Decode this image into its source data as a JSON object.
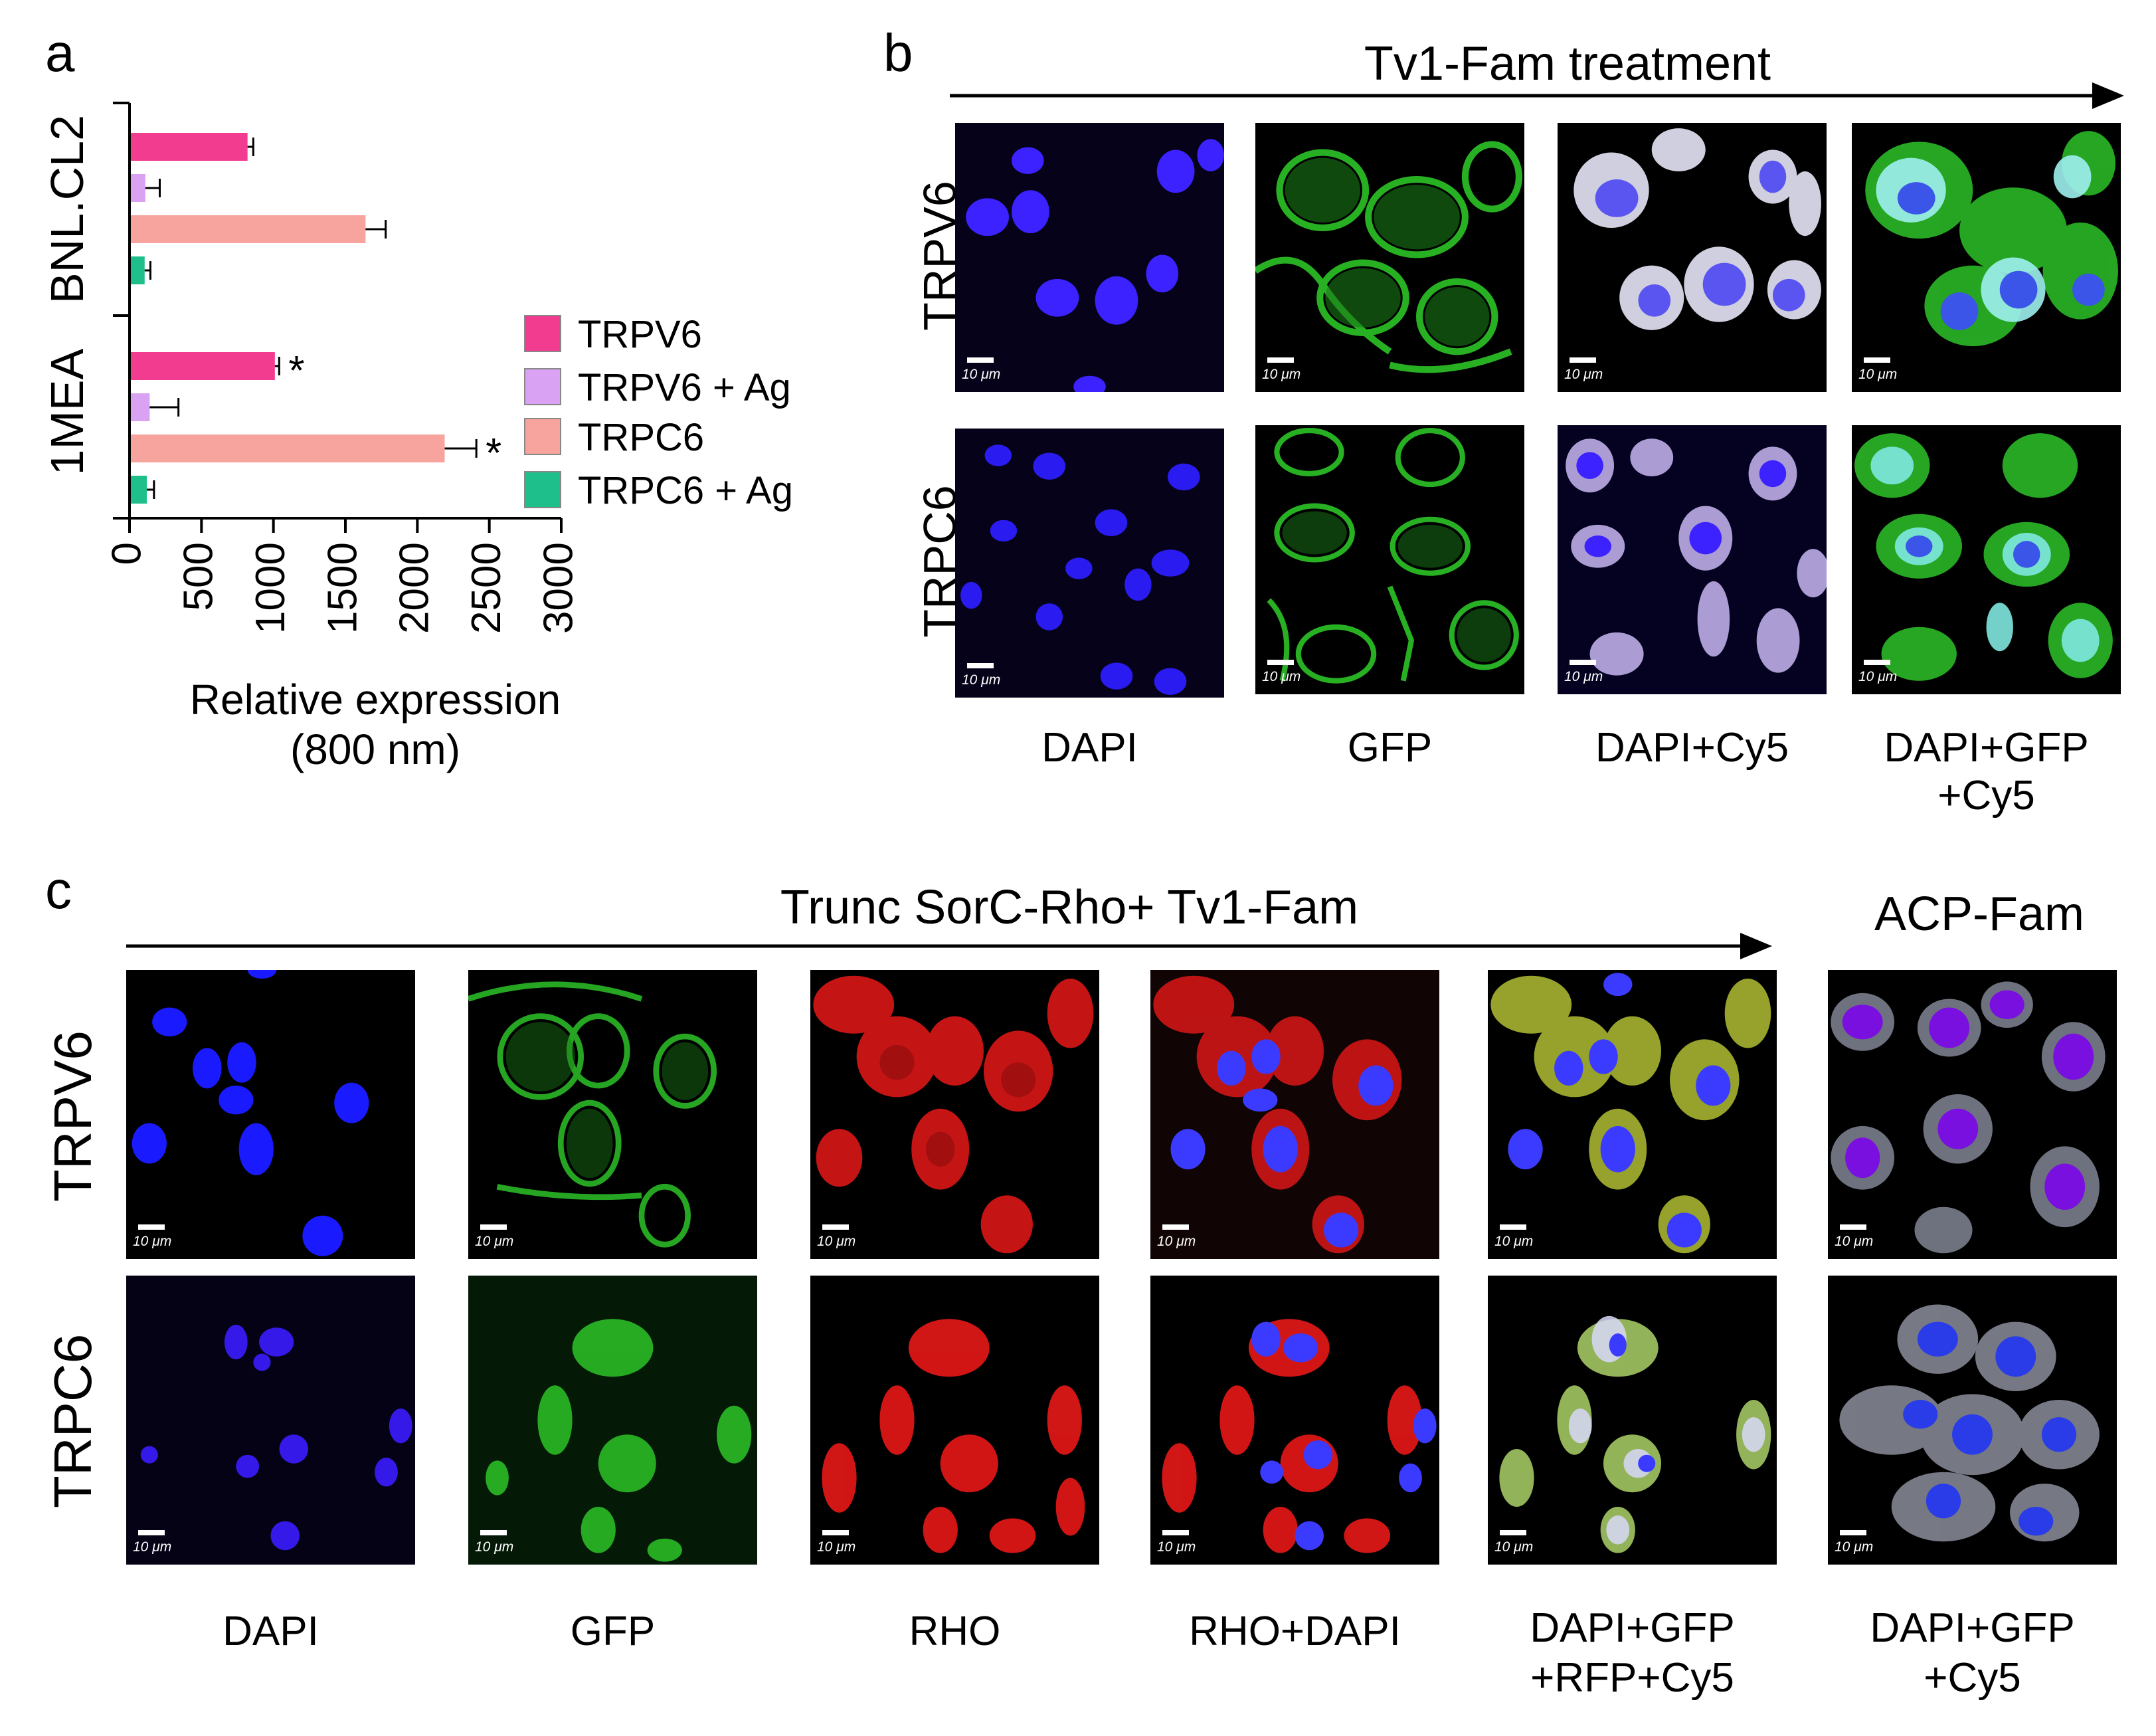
{
  "panel_a": {
    "letter": "a",
    "chart_data": {
      "type": "bar",
      "orientation": "horizontal",
      "groups": [
        "BNL.CL2",
        "1MEA"
      ],
      "series": [
        {
          "name": "TRPV6",
          "color": "#f23c90",
          "values": [
            820,
            1010
          ],
          "errors": [
            40,
            30
          ]
        },
        {
          "name": "TRPV6 + Ag",
          "color": "#d9a2f2",
          "values": [
            110,
            140
          ],
          "errors": [
            100,
            200
          ]
        },
        {
          "name": "TRPC6",
          "color": "#f7a39e",
          "values": [
            1640,
            2190
          ],
          "errors": [
            140,
            220
          ]
        },
        {
          "name": "TRPC6 + Ag",
          "color": "#1fbf8c",
          "values": [
            105,
            120
          ],
          "errors": [
            40,
            50
          ]
        }
      ],
      "significance": [
        {
          "group": "1MEA",
          "series": "TRPV6",
          "mark": "*"
        },
        {
          "group": "1MEA",
          "series": "TRPC6",
          "mark": "*"
        }
      ],
      "xlim": [
        0,
        3000
      ],
      "xticks": [
        "0",
        "500",
        "1000",
        "1500",
        "2000",
        "2500",
        "3000"
      ],
      "xlabel_line1": "Relative expression",
      "xlabel_line2": "(800 nm)",
      "legend": "right"
    }
  },
  "panel_b": {
    "letter": "b",
    "treatment": "Tv1-Fam treatment",
    "rows": [
      "TRPV6",
      "TRPC6"
    ],
    "columns": [
      "DAPI",
      "GFP",
      "DAPI+Cy5",
      "DAPI+GFP",
      "+Cy5"
    ],
    "scale_text": "10 μm"
  },
  "panel_c": {
    "letter": "c",
    "treatment": "Trunc SorC-Rho+ Tv1-Fam",
    "control": "ACP-Fam",
    "rows": [
      "TRPV6",
      "TRPC6"
    ],
    "columns": [
      "DAPI",
      "GFP",
      "RHO",
      "RHO+DAPI",
      "DAPI+GFP",
      "+RFP+Cy5",
      "DAPI+GFP",
      "+Cy5"
    ],
    "scale_text": "10 μm"
  },
  "colors": {
    "dapi": "#2a1cf0",
    "gfp": "#2fcf2a",
    "rho": "#e81818",
    "cy5": "#e6e6f8",
    "background": "#000000"
  }
}
